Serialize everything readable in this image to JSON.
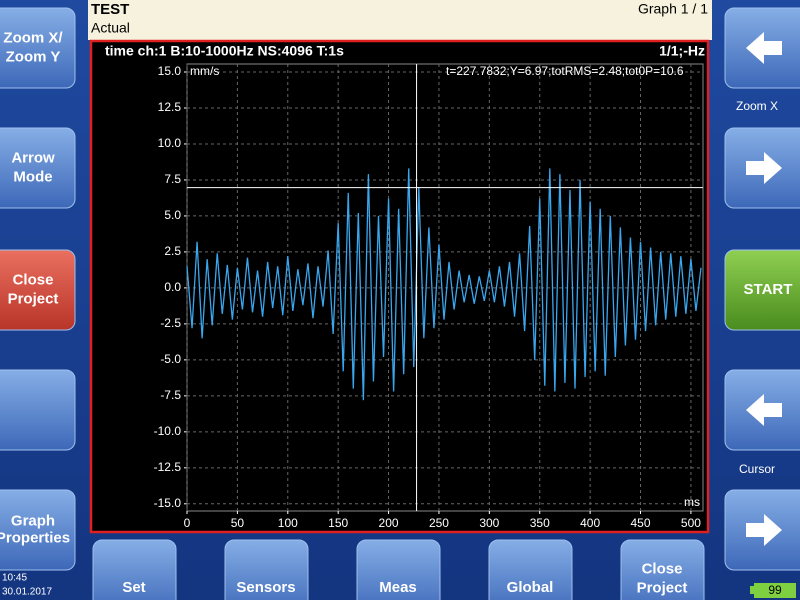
{
  "header": {
    "title": "TEST",
    "subtitle": "Actual",
    "graph_label": "Graph 1 / 1"
  },
  "left_buttons": [
    [
      "Zoom X/",
      "Zoom Y"
    ],
    [
      "Arrow",
      "Mode"
    ],
    [
      "Close",
      "Project"
    ],
    [
      "Graph",
      "Properties"
    ]
  ],
  "right_labels": {
    "zoom": "Zoom X",
    "start": "START",
    "cursor": "Cursor"
  },
  "bottom_buttons": [
    [
      "Set"
    ],
    [
      "Sensors"
    ],
    [
      "Meas"
    ],
    [
      "Global"
    ],
    [
      "Close",
      "Project"
    ]
  ],
  "status": {
    "time": "10:45",
    "date": "30.01.2017",
    "battery": 99
  },
  "chart_data": {
    "type": "line",
    "title": "time ch:1 B:10-1000Hz NS:4096 T:1s",
    "page_label": "1/1;-Hz",
    "y_unit": "mm/s",
    "x_unit": "ms",
    "color": "#3aa6ee",
    "grid": true,
    "cursor": {
      "label": "t=227.7832;Y=6.97;totRMS=2.48;tot0P=10.6",
      "t": 227.7832,
      "y": 6.97
    },
    "xlim": [
      0,
      512
    ],
    "ylim": [
      -15.5,
      15
    ],
    "xticks": [
      0,
      50,
      100,
      150,
      200,
      250,
      300,
      350,
      400,
      450,
      500
    ],
    "yticks": [
      {
        "value": 15,
        "label": "15.0"
      },
      {
        "value": 12.5,
        "label": "12.5"
      },
      {
        "value": 10,
        "label": "10.0"
      },
      {
        "value": 7.5,
        "label": "7.5"
      },
      {
        "value": 5,
        "label": "5.0"
      },
      {
        "value": 2.5,
        "label": "2.5"
      },
      {
        "value": 0,
        "label": "0.0"
      },
      {
        "value": -2.5,
        "label": "-2.5"
      },
      {
        "value": -5,
        "label": "-5.0"
      },
      {
        "value": -7.5,
        "label": "-7.5"
      },
      {
        "value": -10,
        "label": "-10.0"
      },
      {
        "value": -12.5,
        "label": "-12.5"
      },
      {
        "value": -15,
        "label": "-15.0"
      }
    ],
    "x": [
      0,
      5,
      10,
      15,
      20,
      25,
      30,
      35,
      40,
      45,
      50,
      55,
      60,
      65,
      70,
      75,
      80,
      85,
      90,
      95,
      100,
      105,
      110,
      115,
      120,
      125,
      130,
      135,
      140,
      145,
      150,
      155,
      160,
      165,
      170,
      175,
      180,
      185,
      190,
      195,
      200,
      205,
      210,
      215,
      220,
      225,
      230,
      235,
      240,
      245,
      250,
      255,
      260,
      265,
      270,
      275,
      280,
      285,
      290,
      295,
      300,
      305,
      310,
      315,
      320,
      325,
      330,
      335,
      340,
      345,
      350,
      355,
      360,
      365,
      370,
      375,
      380,
      385,
      390,
      395,
      400,
      405,
      410,
      415,
      420,
      425,
      430,
      435,
      440,
      445,
      450,
      455,
      460,
      465,
      470,
      475,
      480,
      485,
      490,
      495,
      500,
      505,
      510
    ],
    "values": [
      1.5,
      -2.8,
      3.2,
      -3.5,
      2.0,
      -2.6,
      2.4,
      -1.8,
      1.6,
      -2.2,
      1.4,
      -1.5,
      2.1,
      -1.7,
      1.2,
      -2.0,
      1.8,
      -1.4,
      1.5,
      -1.9,
      2.2,
      -1.6,
      1.3,
      -1.2,
      1.7,
      -2.1,
      1.5,
      -1.3,
      2.6,
      -3.2,
      4.5,
      -5.8,
      6.6,
      -7.0,
      5.2,
      -7.8,
      7.9,
      -6.5,
      5.0,
      -4.8,
      6.2,
      -7.2,
      5.5,
      -6.0,
      8.3,
      -5.5,
      7.0,
      -3.5,
      4.2,
      -2.8,
      3.0,
      -2.2,
      1.8,
      -1.5,
      1.2,
      -1.0,
      0.9,
      -1.1,
      0.8,
      -0.9,
      1.2,
      -1.0,
      1.5,
      -1.3,
      1.8,
      -2.0,
      2.4,
      -3.0,
      4.3,
      -5.0,
      6.2,
      -6.8,
      8.3,
      -7.2,
      7.9,
      -6.6,
      6.8,
      -7.0,
      7.5,
      -6.2,
      6.0,
      -5.8,
      5.5,
      -6.1,
      5.0,
      -4.8,
      4.2,
      -4.0,
      3.5,
      -3.6,
      3.2,
      -3.0,
      2.8,
      -2.6,
      2.5,
      -2.2,
      2.4,
      -2.0,
      2.2,
      -1.8,
      2.0,
      -1.6,
      1.4
    ]
  }
}
